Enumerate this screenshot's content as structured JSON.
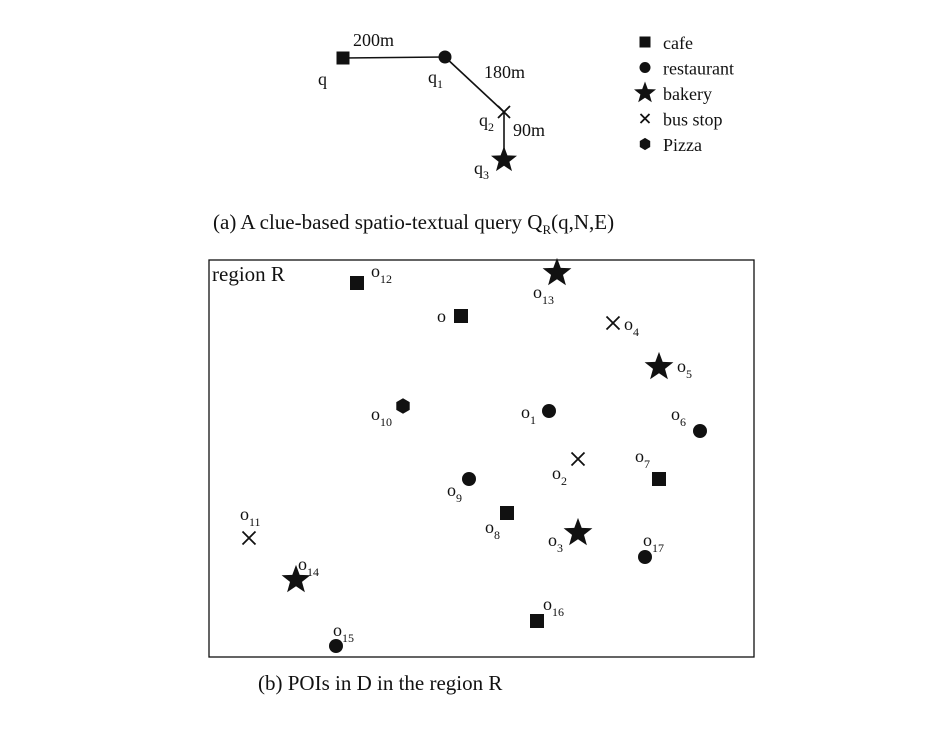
{
  "query": {
    "nodes": [
      {
        "id": "q",
        "name": "q",
        "sub": "",
        "kind": "cafe"
      },
      {
        "id": "q1",
        "name": "q",
        "sub": "1",
        "kind": "restaurant"
      },
      {
        "id": "q2",
        "name": "q",
        "sub": "2",
        "kind": "bus stop"
      },
      {
        "id": "q3",
        "name": "q",
        "sub": "3",
        "kind": "bakery"
      }
    ],
    "edges": [
      {
        "from": "q",
        "to": "q1",
        "label": "200m"
      },
      {
        "from": "q1",
        "to": "q2",
        "label": "180m"
      },
      {
        "from": "q2",
        "to": "q3",
        "label": "90m"
      }
    ]
  },
  "legend": [
    {
      "kind": "cafe",
      "label": "cafe"
    },
    {
      "kind": "restaurant",
      "label": "restaurant"
    },
    {
      "kind": "bakery",
      "label": "bakery"
    },
    {
      "kind": "bus stop",
      "label": "bus stop"
    },
    {
      "kind": "pizza",
      "label": "Pizza"
    }
  ],
  "caption_a": {
    "prefix": "(a) A clue-based spatio-textual query Q",
    "sub": "R",
    "suffix": "(q,N,E)"
  },
  "region": {
    "label": "region R"
  },
  "pois": [
    {
      "id": "o1",
      "name": "o",
      "sub": "1",
      "kind": "restaurant"
    },
    {
      "id": "o2",
      "name": "o",
      "sub": "2",
      "kind": "bus stop"
    },
    {
      "id": "o3",
      "name": "o",
      "sub": "3",
      "kind": "bakery"
    },
    {
      "id": "o4",
      "name": "o",
      "sub": "4",
      "kind": "bus stop"
    },
    {
      "id": "o5",
      "name": "o",
      "sub": "5",
      "kind": "bakery"
    },
    {
      "id": "o6",
      "name": "o",
      "sub": "6",
      "kind": "restaurant"
    },
    {
      "id": "o7",
      "name": "o",
      "sub": "7",
      "kind": "cafe"
    },
    {
      "id": "o8",
      "name": "o",
      "sub": "8",
      "kind": "cafe"
    },
    {
      "id": "o9",
      "name": "o",
      "sub": "9",
      "kind": "restaurant"
    },
    {
      "id": "o10",
      "name": "o",
      "sub": "10",
      "kind": "pizza"
    },
    {
      "id": "o11",
      "name": "o",
      "sub": "11",
      "kind": "bus stop"
    },
    {
      "id": "o12",
      "name": "o",
      "sub": "12",
      "kind": "cafe"
    },
    {
      "id": "o13",
      "name": "o",
      "sub": "13",
      "kind": "bakery"
    },
    {
      "id": "o14",
      "name": "o",
      "sub": "14",
      "kind": "bakery"
    },
    {
      "id": "o15",
      "name": "o",
      "sub": "15",
      "kind": "restaurant"
    },
    {
      "id": "o16",
      "name": "o",
      "sub": "16",
      "kind": "cafe"
    },
    {
      "id": "o17",
      "name": "o",
      "sub": "17",
      "kind": "restaurant"
    },
    {
      "id": "o18",
      "name": "o",
      "sub": "",
      "kind": "cafe"
    }
  ],
  "caption_b": "(b) POIs in D in the region R"
}
